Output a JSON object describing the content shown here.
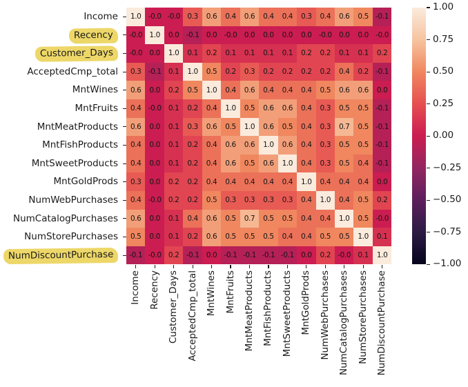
{
  "chart_data": {
    "type": "heatmap",
    "labels": [
      "Income",
      "Recency",
      "Customer_Days",
      "AcceptedCmp_total",
      "MntWines",
      "MntFruits",
      "MntMeatProducts",
      "MntFishProducts",
      "MntSweetProducts",
      "MntGoldProds",
      "NumWebPurchases",
      "NumCatalogPurchases",
      "NumStorePurchases",
      "NumDiscountPurchase"
    ],
    "highlighted_labels": [
      "Recency",
      "Customer_Days",
      "NumDiscountPurchase"
    ],
    "matrix": [
      [
        "1.0",
        "-0.0",
        "-0.0",
        "0.3",
        "0.6",
        "0.4",
        "0.6",
        "0.4",
        "0.4",
        "0.3",
        "0.4",
        "0.6",
        "0.5",
        "-0.1"
      ],
      [
        "-0.0",
        "1.0",
        "0.0",
        "-0.1",
        "0.0",
        "-0.0",
        "0.0",
        "0.0",
        "0.0",
        "0.0",
        "-0.0",
        "0.0",
        "0.0",
        "-0.0"
      ],
      [
        "-0.0",
        "0.0",
        "1.0",
        "0.1",
        "0.2",
        "0.1",
        "0.1",
        "0.1",
        "0.1",
        "0.2",
        "0.2",
        "0.1",
        "0.1",
        "0.2"
      ],
      [
        "0.3",
        "-0.1",
        "0.1",
        "1.0",
        "0.5",
        "0.2",
        "0.3",
        "0.2",
        "0.2",
        "0.2",
        "0.2",
        "0.4",
        "0.2",
        "-0.1"
      ],
      [
        "0.6",
        "0.0",
        "0.2",
        "0.5",
        "1.0",
        "0.4",
        "0.6",
        "0.4",
        "0.4",
        "0.4",
        "0.5",
        "0.6",
        "0.6",
        "0.0"
      ],
      [
        "0.4",
        "-0.0",
        "0.1",
        "0.2",
        "0.4",
        "1.0",
        "0.5",
        "0.6",
        "0.6",
        "0.4",
        "0.3",
        "0.5",
        "0.5",
        "-0.1"
      ],
      [
        "0.6",
        "0.0",
        "0.1",
        "0.3",
        "0.6",
        "0.5",
        "1.0",
        "0.6",
        "0.5",
        "0.4",
        "0.3",
        "0.7",
        "0.5",
        "-0.1"
      ],
      [
        "0.4",
        "0.0",
        "0.1",
        "0.2",
        "0.4",
        "0.6",
        "0.6",
        "1.0",
        "0.6",
        "0.4",
        "0.3",
        "0.5",
        "0.5",
        "-0.1"
      ],
      [
        "0.4",
        "0.0",
        "0.1",
        "0.2",
        "0.4",
        "0.6",
        "0.5",
        "0.6",
        "1.0",
        "0.4",
        "0.3",
        "0.5",
        "0.4",
        "-0.1"
      ],
      [
        "0.3",
        "0.0",
        "0.2",
        "0.2",
        "0.4",
        "0.4",
        "0.4",
        "0.4",
        "0.4",
        "1.0",
        "0.4",
        "0.4",
        "0.4",
        "0.0"
      ],
      [
        "0.4",
        "-0.0",
        "0.2",
        "0.2",
        "0.5",
        "0.3",
        "0.3",
        "0.3",
        "0.3",
        "0.4",
        "1.0",
        "0.4",
        "0.5",
        "0.2"
      ],
      [
        "0.6",
        "0.0",
        "0.1",
        "0.4",
        "0.6",
        "0.5",
        "0.7",
        "0.5",
        "0.5",
        "0.4",
        "0.4",
        "1.0",
        "0.5",
        "-0.0"
      ],
      [
        "0.5",
        "0.0",
        "0.1",
        "0.2",
        "0.6",
        "0.5",
        "0.5",
        "0.5",
        "0.4",
        "0.4",
        "0.5",
        "0.5",
        "1.0",
        "0.1"
      ],
      [
        "-0.1",
        "-0.0",
        "0.2",
        "-0.1",
        "0.0",
        "-0.1",
        "-0.1",
        "-0.1",
        "-0.1",
        "0.0",
        "0.2",
        "-0.0",
        "0.1",
        "1.0"
      ]
    ],
    "vmin": -1.0,
    "vmax": 1.0,
    "colorbar_ticks": [
      "1.00",
      "0.75",
      "0.50",
      "0.25",
      "0.00",
      "−0.25",
      "−0.50",
      "−0.75",
      "−1.00"
    ],
    "colors": {
      "background": "#ffffff",
      "annotation_text": "#151515",
      "tick_text": "#1a1a1a",
      "highlight": "#EDD768",
      "colormap_stops": [
        [
          0.0,
          "#05041E"
        ],
        [
          0.125,
          "#2D1B43"
        ],
        [
          0.25,
          "#5D1F5C"
        ],
        [
          0.375,
          "#932561"
        ],
        [
          0.5,
          "#CB1D51"
        ],
        [
          0.625,
          "#E64F51"
        ],
        [
          0.75,
          "#F0875F"
        ],
        [
          0.875,
          "#F6C4A0"
        ],
        [
          1.0,
          "#FAEBDD"
        ]
      ]
    }
  }
}
